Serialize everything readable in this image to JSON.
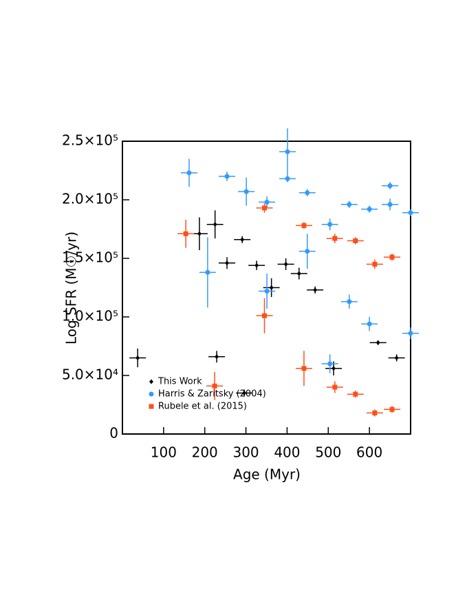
{
  "chart_data": {
    "type": "scatter",
    "x_label": "Age (Myr)",
    "y_label": "Log SFR (M☉/yr)",
    "xlim": [
      0,
      700
    ],
    "xticks": [
      100,
      200,
      300,
      400,
      500,
      600
    ],
    "ylim": [
      0,
      250000
    ],
    "yticks": [
      {
        "value": 0,
        "label": "0"
      },
      {
        "value": 50000,
        "label": "5.0×10⁴"
      },
      {
        "value": 100000,
        "label": "1.0×10⁵"
      },
      {
        "value": 150000,
        "label": "1.5×10⁵"
      },
      {
        "value": 200000,
        "label": "2.0×10⁵"
      },
      {
        "value": 250000,
        "label": "2.5×10⁵"
      }
    ],
    "legend": "lower left",
    "series": [
      {
        "name": "This Work",
        "color": "#000000",
        "marker": "diamond",
        "x": [
          37,
          187,
          225,
          229,
          254,
          291,
          296,
          326,
          362,
          397,
          429,
          468,
          513,
          621,
          666
        ],
        "values": [
          65000,
          171000,
          179000,
          66000,
          146000,
          166000,
          35000,
          144000,
          125000,
          145000,
          137000,
          123000,
          56000,
          78000,
          65000
        ],
        "yerr": [
          8000,
          14000,
          12000,
          5000,
          5000,
          3000,
          3000,
          4000,
          8000,
          5000,
          5000,
          3000,
          6000,
          2000,
          3000
        ]
      },
      {
        "name": "Harris & Zaritsky (2004)",
        "color": "#3399ff",
        "marker": "circle",
        "x": [
          162,
          207,
          254,
          301,
          351,
          351,
          401,
          401,
          449,
          449,
          504,
          504,
          551,
          551,
          600,
          600,
          650,
          650,
          700,
          700
        ],
        "values": [
          223000,
          138000,
          220000,
          207000,
          198000,
          122000,
          241000,
          218000,
          206000,
          156000,
          179000,
          60000,
          196000,
          113000,
          192000,
          94000,
          212000,
          196000,
          189000,
          86000
        ],
        "yerr": [
          12000,
          30000,
          4000,
          12000,
          5000,
          15000,
          20000,
          3000,
          3000,
          15000,
          5000,
          8000,
          3000,
          6000,
          3000,
          6000,
          3000,
          5000,
          3000,
          5000
        ]
      },
      {
        "name": "Rubele et al. (2015)",
        "color": "#ff4f1a",
        "marker": "square",
        "x": [
          154,
          224,
          345,
          345,
          441,
          441,
          516,
          516,
          566,
          566,
          613,
          613,
          655,
          655
        ],
        "values": [
          171000,
          41000,
          193000,
          101000,
          178000,
          56000,
          167000,
          40000,
          165000,
          34000,
          145000,
          18000,
          151000,
          21000
        ],
        "yerr": [
          12000,
          12000,
          4000,
          15000,
          3000,
          15000,
          4000,
          5000,
          3000,
          3000,
          4000,
          3000,
          3000,
          3000
        ]
      }
    ]
  }
}
